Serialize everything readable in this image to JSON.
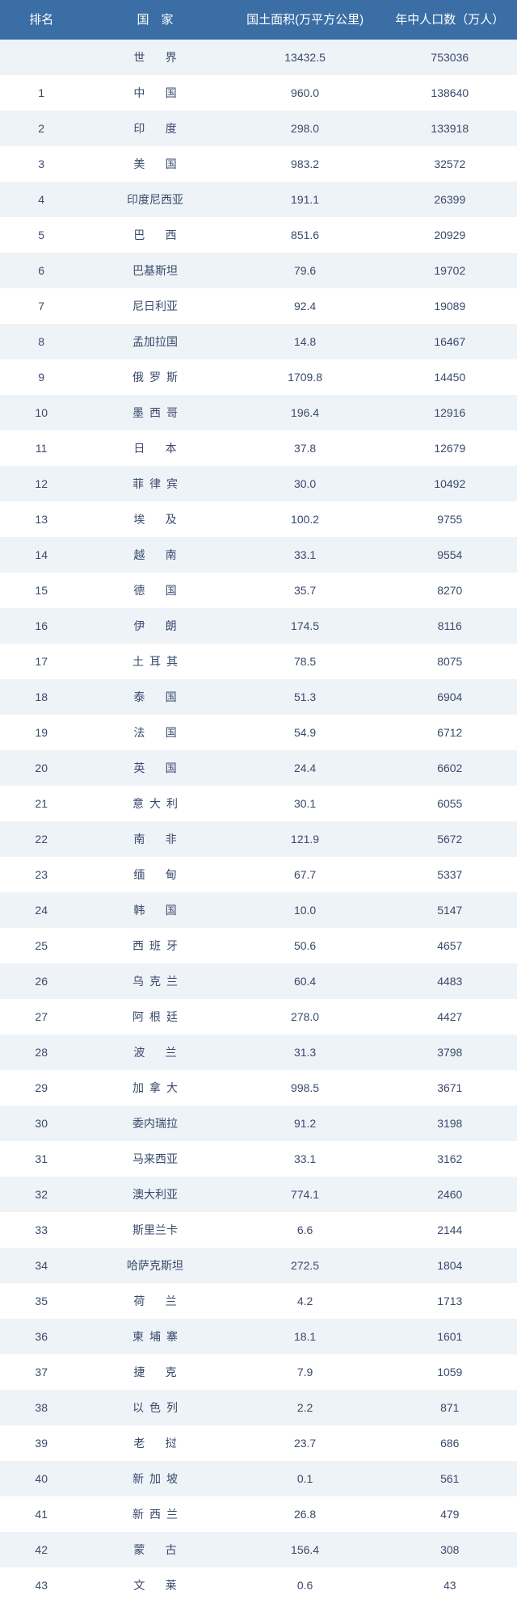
{
  "table": {
    "header_bg": "#3a6ea5",
    "header_fg": "#ffffff",
    "row_even_bg": "#eef3f8",
    "row_odd_bg": "#ffffff",
    "cell_text_color": "#3a4a6b",
    "font_size_header": 15,
    "font_size_body": 14,
    "columns": [
      {
        "key": "rank",
        "label": "排名"
      },
      {
        "key": "country",
        "label": "国　家"
      },
      {
        "key": "area",
        "label": "国土面积(万平方公里)"
      },
      {
        "key": "pop",
        "label": "年中人口数（万人）"
      }
    ],
    "rows": [
      {
        "rank": "",
        "country": "世界",
        "area": "13432.5",
        "pop": "753036"
      },
      {
        "rank": "1",
        "country": "中国",
        "area": "960.0",
        "pop": "138640"
      },
      {
        "rank": "2",
        "country": "印度",
        "area": "298.0",
        "pop": "133918"
      },
      {
        "rank": "3",
        "country": "美国",
        "area": "983.2",
        "pop": "32572"
      },
      {
        "rank": "4",
        "country": "印度尼西亚",
        "area": "191.1",
        "pop": "26399"
      },
      {
        "rank": "5",
        "country": "巴西",
        "area": "851.6",
        "pop": "20929"
      },
      {
        "rank": "6",
        "country": "巴基斯坦",
        "area": "79.6",
        "pop": "19702"
      },
      {
        "rank": "7",
        "country": "尼日利亚",
        "area": "92.4",
        "pop": "19089"
      },
      {
        "rank": "8",
        "country": "孟加拉国",
        "area": "14.8",
        "pop": "16467"
      },
      {
        "rank": "9",
        "country": "俄罗斯",
        "area": "1709.8",
        "pop": "14450"
      },
      {
        "rank": "10",
        "country": "墨西哥",
        "area": "196.4",
        "pop": "12916"
      },
      {
        "rank": "11",
        "country": "日本",
        "area": "37.8",
        "pop": "12679"
      },
      {
        "rank": "12",
        "country": "菲律宾",
        "area": "30.0",
        "pop": "10492"
      },
      {
        "rank": "13",
        "country": "埃及",
        "area": "100.2",
        "pop": "9755"
      },
      {
        "rank": "14",
        "country": "越南",
        "area": "33.1",
        "pop": "9554"
      },
      {
        "rank": "15",
        "country": "德国",
        "area": "35.7",
        "pop": "8270"
      },
      {
        "rank": "16",
        "country": "伊朗",
        "area": "174.5",
        "pop": "8116"
      },
      {
        "rank": "17",
        "country": "土耳其",
        "area": "78.5",
        "pop": "8075"
      },
      {
        "rank": "18",
        "country": "泰国",
        "area": "51.3",
        "pop": "6904"
      },
      {
        "rank": "19",
        "country": "法国",
        "area": "54.9",
        "pop": "6712"
      },
      {
        "rank": "20",
        "country": "英国",
        "area": "24.4",
        "pop": "6602"
      },
      {
        "rank": "21",
        "country": "意大利",
        "area": "30.1",
        "pop": "6055"
      },
      {
        "rank": "22",
        "country": "南非",
        "area": "121.9",
        "pop": "5672"
      },
      {
        "rank": "23",
        "country": "缅甸",
        "area": "67.7",
        "pop": "5337"
      },
      {
        "rank": "24",
        "country": "韩国",
        "area": "10.0",
        "pop": "5147"
      },
      {
        "rank": "25",
        "country": "西班牙",
        "area": "50.6",
        "pop": "4657"
      },
      {
        "rank": "26",
        "country": "乌克兰",
        "area": "60.4",
        "pop": "4483"
      },
      {
        "rank": "27",
        "country": "阿根廷",
        "area": "278.0",
        "pop": "4427"
      },
      {
        "rank": "28",
        "country": "波兰",
        "area": "31.3",
        "pop": "3798"
      },
      {
        "rank": "29",
        "country": "加拿大",
        "area": "998.5",
        "pop": "3671"
      },
      {
        "rank": "30",
        "country": "委内瑞拉",
        "area": "91.2",
        "pop": "3198"
      },
      {
        "rank": "31",
        "country": "马来西亚",
        "area": "33.1",
        "pop": "3162"
      },
      {
        "rank": "32",
        "country": "澳大利亚",
        "area": "774.1",
        "pop": "2460"
      },
      {
        "rank": "33",
        "country": "斯里兰卡",
        "area": "6.6",
        "pop": "2144"
      },
      {
        "rank": "34",
        "country": "哈萨克斯坦",
        "area": "272.5",
        "pop": "1804"
      },
      {
        "rank": "35",
        "country": "荷兰",
        "area": "4.2",
        "pop": "1713"
      },
      {
        "rank": "36",
        "country": "柬埔寨",
        "area": "18.1",
        "pop": "1601"
      },
      {
        "rank": "37",
        "country": "捷克",
        "area": "7.9",
        "pop": "1059"
      },
      {
        "rank": "38",
        "country": "以色列",
        "area": "2.2",
        "pop": "871"
      },
      {
        "rank": "39",
        "country": "老挝",
        "area": "23.7",
        "pop": "686"
      },
      {
        "rank": "40",
        "country": "新加坡",
        "area": "0.1",
        "pop": "561"
      },
      {
        "rank": "41",
        "country": "新西兰",
        "area": "26.8",
        "pop": "479"
      },
      {
        "rank": "42",
        "country": "蒙古",
        "area": "156.4",
        "pop": "308"
      },
      {
        "rank": "43",
        "country": "文莱",
        "area": "0.6",
        "pop": "43"
      }
    ]
  }
}
